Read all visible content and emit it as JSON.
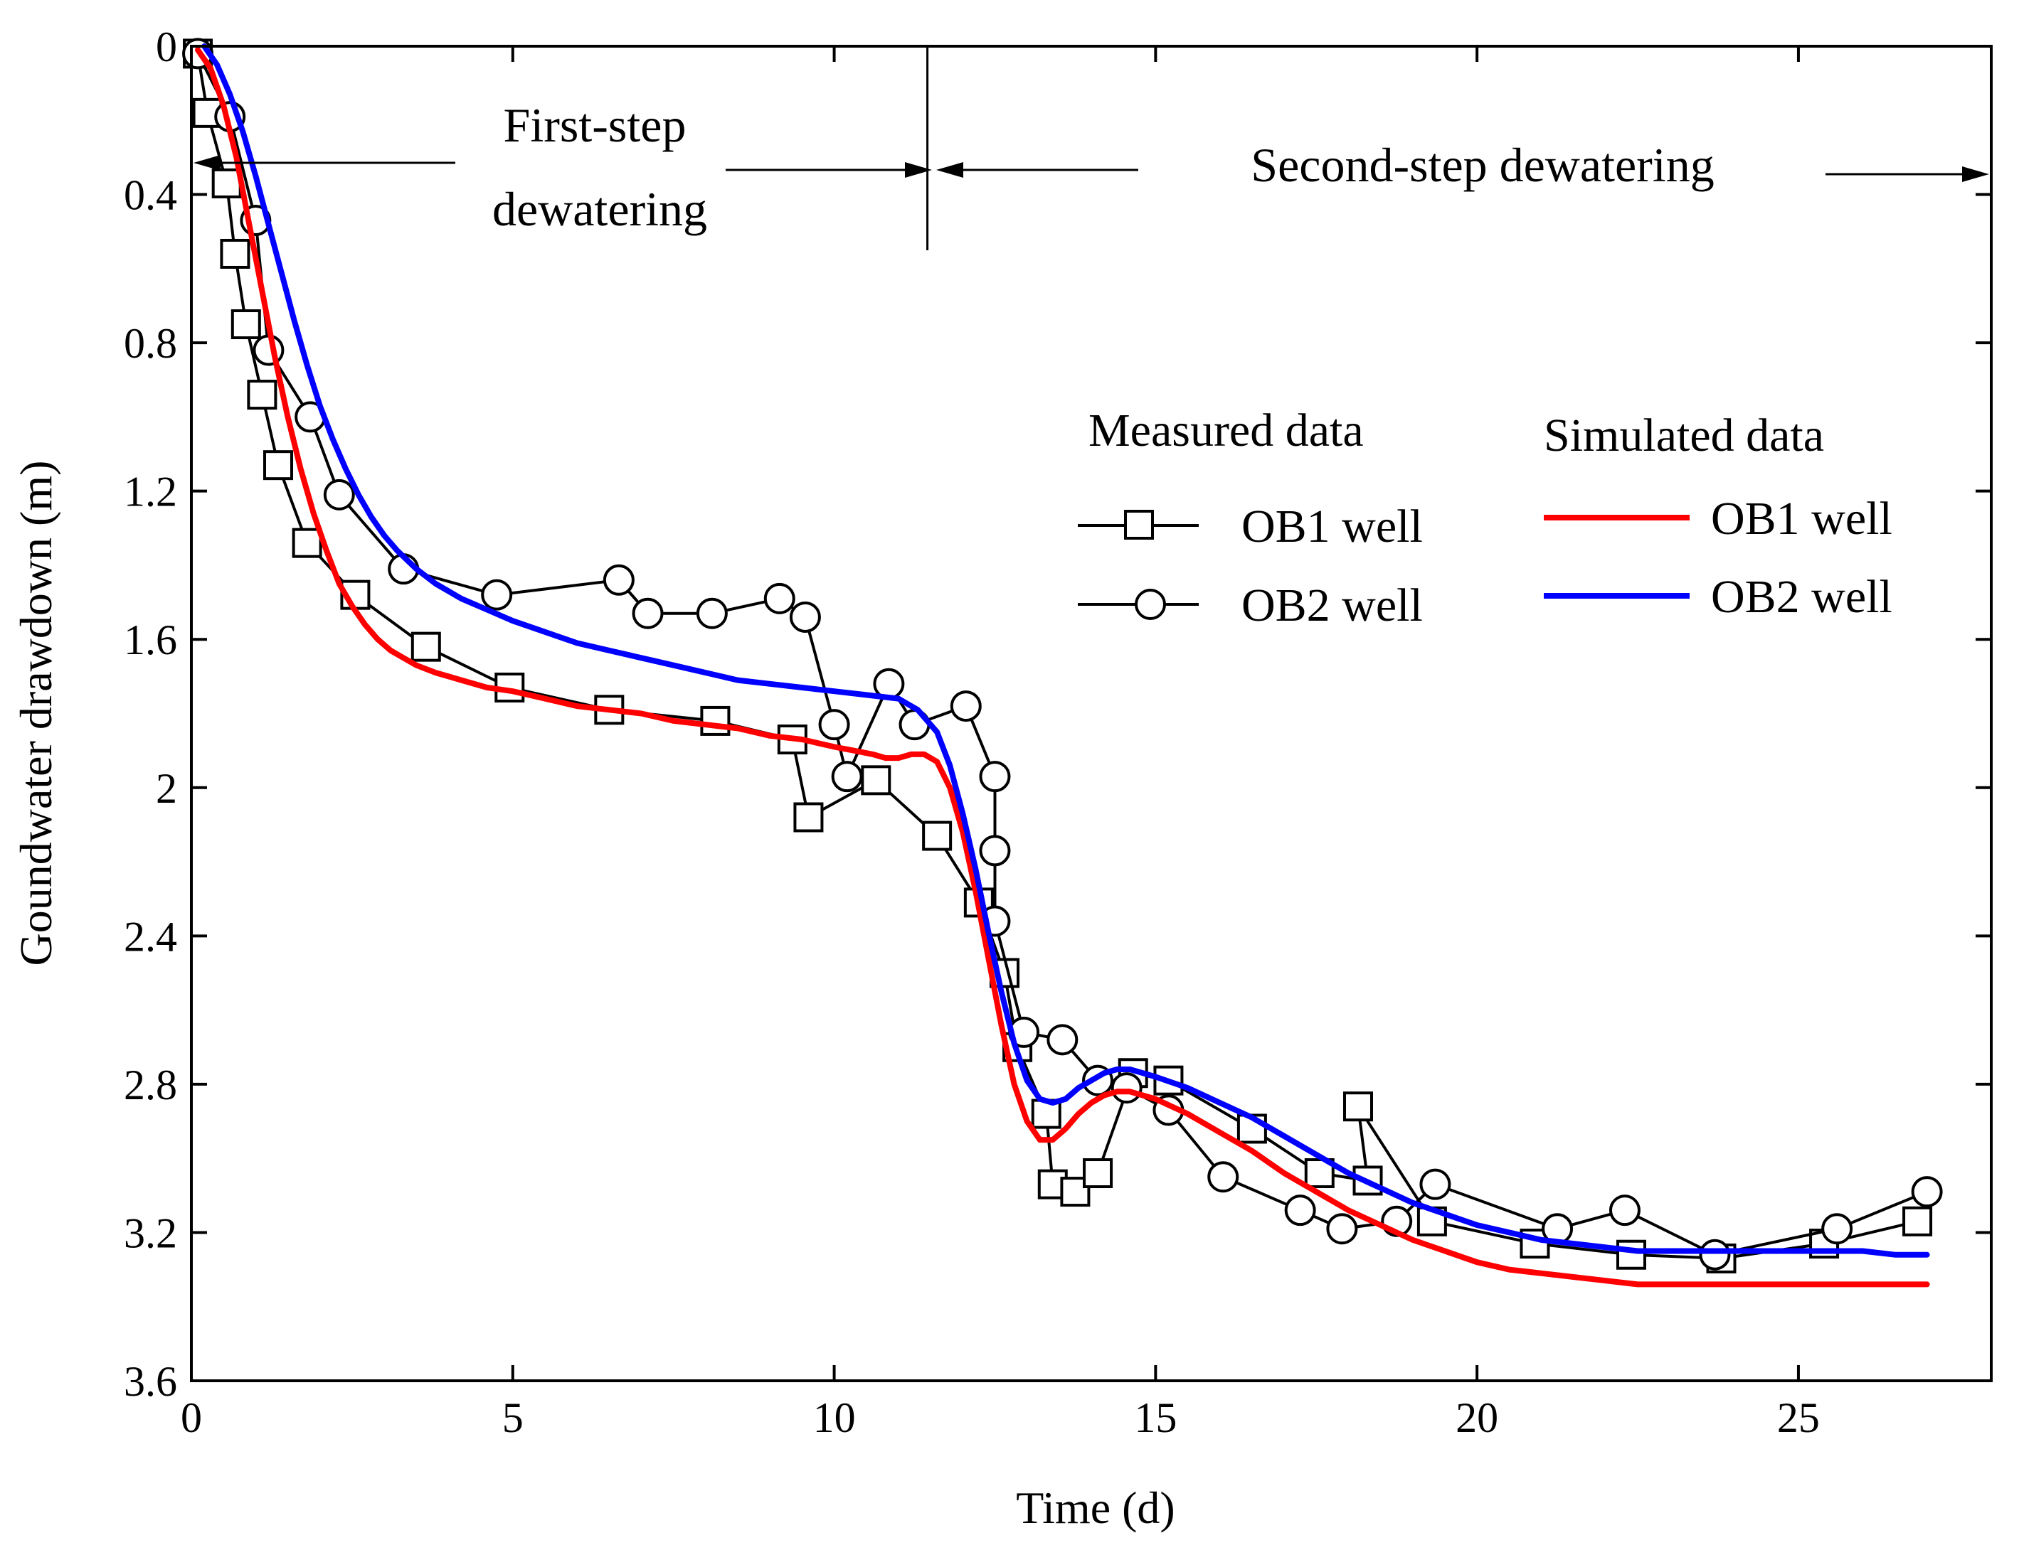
{
  "chart_data": {
    "type": "line",
    "title": "",
    "xlabel": "Time (d)",
    "ylabel": "Goundwater drawdown (m)",
    "xlim": [
      0,
      28
    ],
    "ylim": [
      0,
      3.6
    ],
    "y_inverted": true,
    "x_ticks": [
      0,
      5,
      10,
      15,
      20,
      25
    ],
    "x_tick_labels": [
      "0",
      "5",
      "10",
      "15",
      "20",
      "25"
    ],
    "y_ticks": [
      0,
      0.4,
      0.8,
      1.2,
      1.6,
      2.0,
      2.4,
      2.8,
      3.2,
      3.6
    ],
    "y_tick_labels": [
      "0",
      "0.4",
      "0.8",
      "1.2",
      "1.6",
      "2",
      "2.4",
      "2.8",
      "3.2",
      "3.6"
    ],
    "phase_divider_x": 11.45,
    "annotations": {
      "first_step_line1": "First-step",
      "first_step_line2": "dewatering",
      "second_step": "Second-step  dewatering"
    },
    "legend": {
      "measured_title": "Measured data",
      "simulated_title": "Simulated data",
      "measured_ob1": "OB1 well",
      "measured_ob2": "OB2 well",
      "simulated_ob1": "OB1 well",
      "simulated_ob2": "OB2 well"
    },
    "series": [
      {
        "name": "Measured OB1 well",
        "kind": "measured",
        "marker": "square",
        "color": "#000000",
        "x": [
          0.1,
          0.25,
          0.55,
          0.68,
          0.85,
          1.1,
          1.35,
          1.8,
          2.55,
          3.65,
          4.95,
          6.5,
          8.15,
          9.35,
          9.6,
          10.65,
          11.6,
          12.25,
          12.65,
          12.85,
          13.3,
          13.4,
          13.75,
          14.1,
          14.65,
          15.2,
          16.5,
          17.55,
          18.3,
          18.15,
          19.3,
          20.9,
          22.4,
          23.8,
          25.4,
          26.85
        ],
        "y": [
          0.02,
          0.18,
          0.37,
          0.56,
          0.75,
          0.94,
          1.13,
          1.34,
          1.48,
          1.62,
          1.73,
          1.79,
          1.82,
          1.87,
          2.08,
          1.98,
          2.13,
          2.31,
          2.5,
          2.7,
          2.88,
          3.07,
          3.09,
          3.04,
          2.77,
          2.79,
          2.92,
          3.04,
          3.06,
          2.86,
          3.17,
          3.23,
          3.26,
          3.27,
          3.23,
          3.17
        ]
      },
      {
        "name": "Measured OB2 well",
        "kind": "measured",
        "marker": "circle",
        "color": "#000000",
        "x": [
          0.1,
          0.6,
          1.0,
          1.2,
          1.85,
          2.3,
          3.3,
          4.75,
          6.65,
          7.1,
          8.1,
          9.15,
          9.55,
          10.0,
          10.2,
          10.85,
          11.25,
          12.05,
          12.5,
          12.5,
          12.5,
          12.95,
          13.55,
          14.1,
          14.55,
          15.2,
          16.05,
          17.25,
          17.9,
          18.75,
          19.35,
          21.25,
          22.3,
          23.7,
          25.6,
          27.0
        ],
        "y": [
          0.02,
          0.19,
          0.47,
          0.82,
          1.0,
          1.21,
          1.41,
          1.48,
          1.44,
          1.53,
          1.53,
          1.49,
          1.54,
          1.83,
          1.97,
          1.72,
          1.83,
          1.78,
          1.97,
          2.17,
          2.36,
          2.66,
          2.68,
          2.79,
          2.81,
          2.87,
          3.05,
          3.14,
          3.19,
          3.17,
          3.07,
          3.19,
          3.14,
          3.26,
          3.19,
          3.09
        ]
      },
      {
        "name": "Simulated OB1 well",
        "kind": "simulated",
        "color": "#ff0000",
        "x": [
          0.1,
          0.3,
          0.5,
          0.7,
          0.9,
          1.1,
          1.3,
          1.5,
          1.7,
          1.9,
          2.1,
          2.3,
          2.5,
          2.7,
          2.9,
          3.1,
          3.3,
          3.5,
          3.8,
          4.2,
          4.6,
          5.0,
          5.5,
          6.0,
          6.5,
          7.0,
          7.5,
          8.0,
          8.5,
          9.0,
          9.5,
          10.0,
          10.3,
          10.6,
          10.8,
          11.0,
          11.2,
          11.4,
          11.6,
          11.8,
          12.0,
          12.2,
          12.4,
          12.6,
          12.8,
          13.0,
          13.2,
          13.4,
          13.6,
          13.8,
          14.0,
          14.2,
          14.4,
          14.6,
          14.8,
          15.0,
          15.5,
          16.0,
          16.5,
          17.0,
          17.5,
          18.0,
          18.5,
          19.0,
          19.5,
          20.0,
          20.5,
          21.0,
          21.5,
          22.0,
          22.5,
          23.0,
          24.0,
          25.0,
          26.0,
          27.0
        ],
        "y": [
          0.01,
          0.06,
          0.16,
          0.3,
          0.48,
          0.66,
          0.84,
          1.0,
          1.14,
          1.26,
          1.36,
          1.45,
          1.51,
          1.56,
          1.6,
          1.63,
          1.65,
          1.67,
          1.69,
          1.71,
          1.73,
          1.74,
          1.76,
          1.78,
          1.79,
          1.8,
          1.82,
          1.83,
          1.84,
          1.86,
          1.87,
          1.89,
          1.9,
          1.91,
          1.92,
          1.92,
          1.91,
          1.91,
          1.93,
          2.0,
          2.12,
          2.28,
          2.46,
          2.64,
          2.8,
          2.9,
          2.95,
          2.95,
          2.92,
          2.88,
          2.85,
          2.83,
          2.82,
          2.82,
          2.83,
          2.84,
          2.88,
          2.93,
          2.98,
          3.04,
          3.09,
          3.14,
          3.18,
          3.22,
          3.25,
          3.28,
          3.3,
          3.31,
          3.32,
          3.33,
          3.34,
          3.34,
          3.34,
          3.34,
          3.34,
          3.34
        ]
      },
      {
        "name": "Simulated OB2 well",
        "kind": "simulated",
        "color": "#0000ff",
        "x": [
          0.2,
          0.4,
          0.6,
          0.8,
          1.0,
          1.2,
          1.4,
          1.6,
          1.8,
          2.0,
          2.2,
          2.4,
          2.6,
          2.8,
          3.0,
          3.2,
          3.5,
          3.8,
          4.2,
          4.6,
          5.0,
          5.5,
          6.0,
          6.5,
          7.0,
          7.5,
          8.0,
          8.5,
          9.0,
          9.5,
          10.0,
          10.5,
          11.0,
          11.3,
          11.6,
          11.8,
          12.0,
          12.2,
          12.4,
          12.6,
          12.8,
          13.0,
          13.2,
          13.4,
          13.6,
          13.8,
          14.0,
          14.2,
          14.4,
          14.6,
          14.8,
          15.0,
          15.5,
          16.0,
          16.5,
          17.0,
          17.5,
          18.0,
          18.5,
          19.0,
          19.5,
          20.0,
          20.5,
          21.0,
          21.5,
          22.0,
          22.5,
          23.0,
          23.5,
          24.0,
          24.5,
          25.0,
          25.5,
          26.0,
          26.5,
          27.0
        ],
        "y": [
          0.0,
          0.05,
          0.13,
          0.23,
          0.35,
          0.48,
          0.61,
          0.74,
          0.86,
          0.97,
          1.06,
          1.14,
          1.21,
          1.27,
          1.32,
          1.36,
          1.41,
          1.45,
          1.49,
          1.52,
          1.55,
          1.58,
          1.61,
          1.63,
          1.65,
          1.67,
          1.69,
          1.71,
          1.72,
          1.73,
          1.74,
          1.75,
          1.76,
          1.79,
          1.85,
          1.94,
          2.07,
          2.22,
          2.39,
          2.55,
          2.69,
          2.79,
          2.84,
          2.85,
          2.84,
          2.81,
          2.79,
          2.77,
          2.76,
          2.76,
          2.77,
          2.78,
          2.81,
          2.85,
          2.89,
          2.94,
          2.99,
          3.04,
          3.08,
          3.12,
          3.15,
          3.18,
          3.2,
          3.22,
          3.23,
          3.24,
          3.25,
          3.25,
          3.25,
          3.25,
          3.25,
          3.25,
          3.25,
          3.25,
          3.26,
          3.26
        ]
      }
    ]
  }
}
